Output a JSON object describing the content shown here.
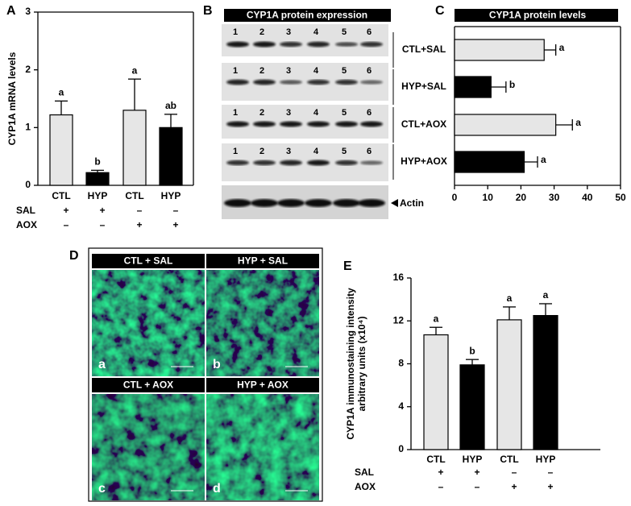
{
  "panel_labels": [
    "A",
    "B",
    "C",
    "D",
    "E"
  ],
  "chart_data": [
    {
      "type": "bar",
      "ylabel": [
        "CYP1A mRNA levels"
      ],
      "categories": [
        "CTL",
        "HYP",
        "CTL",
        "HYP"
      ],
      "values": [
        1.22,
        0.22,
        1.3,
        1.0
      ],
      "errors": [
        0.24,
        0.04,
        0.54,
        0.23
      ],
      "colors": [
        "#e6e6e6",
        "#000000",
        "#e6e6e6",
        "#000000"
      ],
      "annotations": [
        "a",
        "b",
        "a",
        "ab"
      ],
      "rows": [
        {
          "label": "SAL",
          "marks": [
            "+",
            "+",
            "–",
            "–"
          ]
        },
        {
          "label": "AOX",
          "marks": [
            "–",
            "–",
            "+",
            "+"
          ]
        }
      ],
      "ylim": [
        0,
        3
      ],
      "yticks": [
        0,
        1,
        2,
        3
      ]
    },
    {
      "type": "barh",
      "title": "CYP1A protein levels",
      "categories": [
        "CTL+SAL",
        "HYP+SAL",
        "CTL+AOX",
        "HYP+AOX"
      ],
      "values": [
        27,
        11,
        30.5,
        21
      ],
      "errors": [
        3.5,
        4.5,
        5,
        4
      ],
      "colors": [
        "#e6e6e6",
        "#000000",
        "#e6e6e6",
        "#000000"
      ],
      "annotations": [
        "a",
        "b",
        "a",
        "a"
      ],
      "xlim": [
        0,
        50
      ],
      "xticks": [
        0,
        10,
        20,
        30,
        40,
        50
      ]
    },
    {
      "type": "bar",
      "ylabel": [
        "CYP1A immunostaining intensity",
        "arbitrary units (x10⁴)"
      ],
      "categories": [
        "CTL",
        "HYP",
        "CTL",
        "HYP"
      ],
      "values": [
        10.7,
        7.9,
        12.1,
        12.5
      ],
      "errors": [
        0.7,
        0.5,
        1.2,
        1.1
      ],
      "colors": [
        "#e6e6e6",
        "#000000",
        "#e6e6e6",
        "#000000"
      ],
      "annotations": [
        "a",
        "b",
        "a",
        "a"
      ],
      "rows": [
        {
          "label": "SAL",
          "marks": [
            "+",
            "+",
            "–",
            "–"
          ]
        },
        {
          "label": "AOX",
          "marks": [
            "–",
            "–",
            "+",
            "+"
          ]
        }
      ],
      "ylim": [
        0,
        16
      ],
      "yticks": [
        0,
        4,
        8,
        12,
        16
      ]
    }
  ],
  "blot": {
    "title": "CYP1A protein expression",
    "lanes": [
      "1",
      "2",
      "3",
      "4",
      "5",
      "6"
    ],
    "actin": "Actin"
  },
  "micrographs": {
    "labels": [
      "CTL + SAL",
      "HYP + SAL",
      "CTL + AOX",
      "HYP + AOX"
    ],
    "letters": [
      "a",
      "b",
      "c",
      "d"
    ]
  }
}
